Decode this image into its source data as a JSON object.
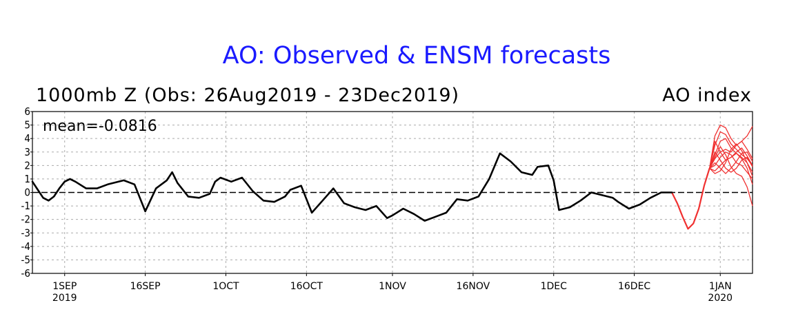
{
  "chart_data": {
    "type": "line",
    "title": "AO: Observed & ENSM forecasts",
    "subtitle_left": "1000mb Z (Obs: 26Aug2019 - 23Dec2019)",
    "subtitle_right": "AO index",
    "annotation": "mean=-0.0816",
    "ylim": [
      -6,
      6
    ],
    "yticks": [
      "6",
      "5",
      "4",
      "3",
      "2",
      "1",
      "0",
      "-1",
      "-2",
      "-3",
      "-4",
      "-5",
      "-6"
    ],
    "xlim": [
      "2019-08-26",
      "2020-01-07"
    ],
    "xticks": [
      {
        "date": "2019-09-01",
        "label": "1SEP",
        "sub": "2019"
      },
      {
        "date": "2019-09-16",
        "label": "16SEP",
        "sub": ""
      },
      {
        "date": "2019-10-01",
        "label": "1OCT",
        "sub": ""
      },
      {
        "date": "2019-10-16",
        "label": "16OCT",
        "sub": ""
      },
      {
        "date": "2019-11-01",
        "label": "1NOV",
        "sub": ""
      },
      {
        "date": "2019-11-16",
        "label": "16NOV",
        "sub": ""
      },
      {
        "date": "2019-12-01",
        "label": "1DEC",
        "sub": ""
      },
      {
        "date": "2019-12-16",
        "label": "16DEC",
        "sub": ""
      },
      {
        "date": "2020-01-01",
        "label": "1JAN",
        "sub": "2020"
      }
    ],
    "grid": true,
    "colors": {
      "title": "#1a1aff",
      "observed": "#000000",
      "forecast": "#f03030",
      "grid": "#aaaaaa"
    },
    "observed": {
      "name": "Observed",
      "x": [
        "2019-08-26",
        "2019-08-27",
        "2019-08-28",
        "2019-08-29",
        "2019-08-30",
        "2019-08-31",
        "2019-09-01",
        "2019-09-02",
        "2019-09-03",
        "2019-09-05",
        "2019-09-07",
        "2019-09-09",
        "2019-09-12",
        "2019-09-14",
        "2019-09-16",
        "2019-09-18",
        "2019-09-20",
        "2019-09-21",
        "2019-09-22",
        "2019-09-24",
        "2019-09-26",
        "2019-09-28",
        "2019-09-29",
        "2019-09-30",
        "2019-10-02",
        "2019-10-04",
        "2019-10-06",
        "2019-10-08",
        "2019-10-10",
        "2019-10-12",
        "2019-10-13",
        "2019-10-15",
        "2019-10-17",
        "2019-10-19",
        "2019-10-21",
        "2019-10-23",
        "2019-10-25",
        "2019-10-27",
        "2019-10-29",
        "2019-10-31",
        "2019-11-01",
        "2019-11-03",
        "2019-11-05",
        "2019-11-07",
        "2019-11-09",
        "2019-11-11",
        "2019-11-13",
        "2019-11-15",
        "2019-11-17",
        "2019-11-19",
        "2019-11-21",
        "2019-11-23",
        "2019-11-25",
        "2019-11-27",
        "2019-11-28",
        "2019-11-30",
        "2019-12-01",
        "2019-12-02",
        "2019-12-04",
        "2019-12-06",
        "2019-12-08",
        "2019-12-10",
        "2019-12-12",
        "2019-12-13",
        "2019-12-15",
        "2019-12-17",
        "2019-12-19",
        "2019-12-21",
        "2019-12-23"
      ],
      "values": [
        0.8,
        0.2,
        -0.4,
        -0.6,
        -0.3,
        0.3,
        0.8,
        1.0,
        0.8,
        0.3,
        0.3,
        0.6,
        0.9,
        0.6,
        -1.4,
        0.3,
        0.9,
        1.5,
        0.7,
        -0.3,
        -0.4,
        -0.1,
        0.8,
        1.1,
        0.8,
        1.1,
        0.1,
        -0.6,
        -0.7,
        -0.3,
        0.2,
        0.5,
        -1.5,
        -0.6,
        0.3,
        -0.8,
        -1.1,
        -1.3,
        -1.0,
        -1.9,
        -1.7,
        -1.2,
        -1.6,
        -2.1,
        -1.8,
        -1.5,
        -0.5,
        -0.6,
        -0.3,
        1.0,
        2.9,
        2.3,
        1.5,
        1.3,
        1.9,
        2.0,
        0.9,
        -1.3,
        -1.1,
        -0.6,
        0.0,
        -0.2,
        -0.4,
        -0.7,
        -1.2,
        -0.9,
        -0.4,
        0.0,
        0.0
      ]
    },
    "forecast_common": {
      "x": [
        "2019-12-23",
        "2019-12-24",
        "2019-12-25",
        "2019-12-26",
        "2019-12-27",
        "2019-12-28",
        "2019-12-29",
        "2019-12-30"
      ],
      "values": [
        0.0,
        -0.8,
        -1.8,
        -2.7,
        -2.3,
        -1.2,
        0.5,
        1.8
      ]
    },
    "forecast_members": [
      {
        "x": [
          "2019-12-30",
          "2019-12-31",
          "2020-01-01",
          "2020-01-02",
          "2020-01-03",
          "2020-01-04",
          "2020-01-05",
          "2020-01-06",
          "2020-01-07"
        ],
        "values": [
          1.8,
          4.2,
          5.0,
          4.8,
          4.0,
          3.5,
          3.8,
          4.2,
          4.9
        ]
      },
      {
        "x": [
          "2019-12-30",
          "2019-12-31",
          "2020-01-01",
          "2020-01-02",
          "2020-01-03",
          "2020-01-04",
          "2020-01-05",
          "2020-01-06",
          "2020-01-07"
        ],
        "values": [
          1.8,
          3.5,
          4.5,
          4.3,
          3.6,
          3.2,
          2.8,
          2.5,
          2.0
        ]
      },
      {
        "x": [
          "2019-12-30",
          "2019-12-31",
          "2020-01-01",
          "2020-01-02",
          "2020-01-03",
          "2020-01-04",
          "2020-01-05",
          "2020-01-06",
          "2020-01-07"
        ],
        "values": [
          1.8,
          2.8,
          3.8,
          4.0,
          3.3,
          2.9,
          2.6,
          2.2,
          1.5
        ]
      },
      {
        "x": [
          "2019-12-30",
          "2019-12-31",
          "2020-01-01",
          "2020-01-02",
          "2020-01-03",
          "2020-01-04",
          "2020-01-05",
          "2020-01-06",
          "2020-01-07"
        ],
        "values": [
          1.8,
          2.5,
          3.0,
          3.2,
          3.0,
          3.5,
          3.8,
          3.2,
          2.5
        ]
      },
      {
        "x": [
          "2019-12-30",
          "2019-12-31",
          "2020-01-01",
          "2020-01-02",
          "2020-01-03",
          "2020-01-04",
          "2020-01-05",
          "2020-01-06",
          "2020-01-07"
        ],
        "values": [
          1.8,
          2.0,
          2.6,
          3.0,
          2.8,
          2.2,
          2.0,
          1.5,
          1.0
        ]
      },
      {
        "x": [
          "2019-12-30",
          "2019-12-31",
          "2020-01-01",
          "2020-01-02",
          "2020-01-03",
          "2020-01-04",
          "2020-01-05",
          "2020-01-06",
          "2020-01-07"
        ],
        "values": [
          1.8,
          1.6,
          2.0,
          2.4,
          2.6,
          2.9,
          2.5,
          1.8,
          0.6
        ]
      },
      {
        "x": [
          "2019-12-30",
          "2019-12-31",
          "2020-01-01",
          "2020-01-02",
          "2020-01-03",
          "2020-01-04",
          "2020-01-05",
          "2020-01-06",
          "2020-01-07"
        ],
        "values": [
          1.8,
          2.2,
          1.8,
          1.4,
          1.8,
          2.3,
          2.9,
          3.0,
          2.3
        ]
      },
      {
        "x": [
          "2019-12-30",
          "2019-12-31",
          "2020-01-01",
          "2020-01-02",
          "2020-01-03",
          "2020-01-04",
          "2020-01-05",
          "2020-01-06",
          "2020-01-07"
        ],
        "values": [
          1.8,
          3.0,
          2.4,
          1.8,
          1.5,
          1.8,
          2.4,
          2.6,
          1.9
        ]
      },
      {
        "x": [
          "2019-12-30",
          "2019-12-31",
          "2020-01-01",
          "2020-01-02",
          "2020-01-03",
          "2020-01-04",
          "2020-01-05",
          "2020-01-06",
          "2020-01-07"
        ],
        "values": [
          1.8,
          2.6,
          3.4,
          2.8,
          1.9,
          1.4,
          1.2,
          0.4,
          -1.0
        ]
      },
      {
        "x": [
          "2019-12-30",
          "2019-12-31",
          "2020-01-01",
          "2020-01-02",
          "2020-01-03",
          "2020-01-04",
          "2020-01-05",
          "2020-01-06",
          "2020-01-07"
        ],
        "values": [
          1.8,
          3.8,
          3.0,
          2.4,
          2.6,
          3.0,
          3.3,
          2.7,
          2.0
        ]
      },
      {
        "x": [
          "2019-12-30",
          "2019-12-31",
          "2020-01-01",
          "2020-01-02",
          "2020-01-03",
          "2020-01-04",
          "2020-01-05",
          "2020-01-06",
          "2020-01-07"
        ],
        "values": [
          1.8,
          1.4,
          1.6,
          2.2,
          3.2,
          3.6,
          3.1,
          2.2,
          1.2
        ]
      }
    ]
  }
}
